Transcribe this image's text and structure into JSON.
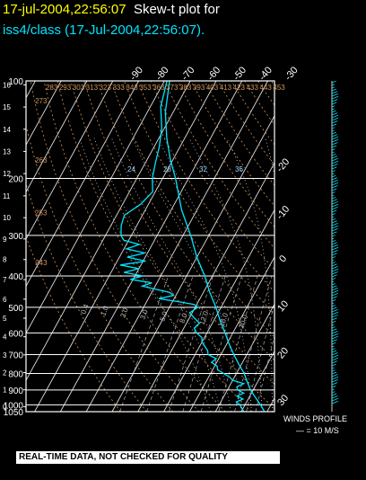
{
  "header": {
    "datetime": "17-jul-2004,22:56:07",
    "plot_label": "Skew-t plot for",
    "subtitle": "iss4/class (17-Jul-2004,22:56:07)."
  },
  "footer": {
    "qc_note": "REAL-TIME DATA, NOT CHECKED FOR QUALITY",
    "wind_title": "WINDS PROFILE",
    "wind_scale": "— = 10 M/S"
  },
  "colors": {
    "background": "#000000",
    "frame": "#ffffff",
    "isotherm": "#dddddd",
    "dry_adiabat": "#d2955a",
    "moist_adiabat": "#cccccc",
    "mixing_ratio": "#aaaaaa",
    "sounding": "#00e5ff",
    "datetime": "#ffff00"
  },
  "chart_data": {
    "type": "line",
    "diagram": "skew-t",
    "pressure_ticks_hpa": [
      100,
      200,
      300,
      400,
      500,
      600,
      700,
      800,
      900,
      1000,
      1050
    ],
    "height_ticks_km": [
      0,
      1,
      2,
      3,
      4,
      5,
      6,
      7,
      8,
      9,
      10,
      11,
      12,
      13,
      14,
      15,
      16
    ],
    "isotherm_labels_top": [
      "-90",
      "-80",
      "-70",
      "-60",
      "-50",
      "-40",
      "-30"
    ],
    "isotherm_labels_right": [
      "-20",
      "-10",
      "0",
      "10",
      "20",
      "30"
    ],
    "isotherm_values_c": [
      -90,
      -80,
      -70,
      -60,
      -50,
      -40,
      -30,
      -20,
      -10,
      0,
      10,
      20,
      30,
      40
    ],
    "dry_adiabat_labels": [
      "243",
      "253",
      "263",
      "273",
      "283",
      "293",
      "303",
      "313",
      "323",
      "333",
      "343",
      "353",
      "363",
      "373",
      "383",
      "393",
      "403",
      "413",
      "423",
      "433",
      "443",
      "453"
    ],
    "moist_adiabat_labels": [
      "24",
      "28",
      "32",
      "36"
    ],
    "mixing_ratio_labels": [
      "0.4",
      "1.0",
      "2.0",
      "3.0",
      "5.0",
      "8.0",
      "12.0",
      "16.0",
      "20.0"
    ],
    "series": [
      {
        "role": "temperature",
        "points": [
          [
            1050,
            29
          ],
          [
            1000,
            26
          ],
          [
            950,
            22.5
          ],
          [
            900,
            19
          ],
          [
            850,
            16
          ],
          [
            800,
            13
          ],
          [
            750,
            9
          ],
          [
            700,
            5
          ],
          [
            650,
            1
          ],
          [
            600,
            -3
          ],
          [
            550,
            -7.5
          ],
          [
            500,
            -12
          ],
          [
            450,
            -17.5
          ],
          [
            400,
            -23
          ],
          [
            350,
            -30
          ],
          [
            300,
            -37
          ],
          [
            250,
            -46
          ],
          [
            200,
            -55
          ],
          [
            175,
            -61
          ],
          [
            150,
            -67
          ],
          [
            125,
            -73
          ],
          [
            100,
            -78
          ]
        ]
      },
      {
        "role": "dewpoint",
        "points": [
          [
            1050,
            21
          ],
          [
            1000,
            18
          ],
          [
            980,
            16
          ],
          [
            960,
            18
          ],
          [
            940,
            15
          ],
          [
            920,
            17
          ],
          [
            900,
            14
          ],
          [
            880,
            13
          ],
          [
            860,
            15
          ],
          [
            840,
            10
          ],
          [
            820,
            8
          ],
          [
            800,
            5
          ],
          [
            780,
            2
          ],
          [
            760,
            1
          ],
          [
            740,
            -2
          ],
          [
            720,
            -1
          ],
          [
            700,
            -5
          ],
          [
            680,
            -6
          ],
          [
            660,
            -8
          ],
          [
            640,
            -10
          ],
          [
            620,
            -11
          ],
          [
            600,
            -14
          ],
          [
            580,
            -16
          ],
          [
            560,
            -15
          ],
          [
            540,
            -18
          ],
          [
            520,
            -21
          ],
          [
            500,
            -19
          ],
          [
            490,
            -21
          ],
          [
            480,
            -28
          ],
          [
            470,
            -36
          ],
          [
            460,
            -31
          ],
          [
            450,
            -33
          ],
          [
            440,
            -39
          ],
          [
            430,
            -45
          ],
          [
            420,
            -42
          ],
          [
            410,
            -51
          ],
          [
            400,
            -47
          ],
          [
            390,
            -55
          ],
          [
            380,
            -50
          ],
          [
            370,
            -58
          ],
          [
            360,
            -49
          ],
          [
            350,
            -57
          ],
          [
            340,
            -51
          ],
          [
            330,
            -59
          ],
          [
            320,
            -55
          ],
          [
            310,
            -62
          ],
          [
            300,
            -64
          ],
          [
            280,
            -66
          ],
          [
            260,
            -67
          ],
          [
            240,
            -63
          ],
          [
            220,
            -61
          ],
          [
            200,
            -64
          ],
          [
            180,
            -66
          ],
          [
            160,
            -68
          ],
          [
            140,
            -71
          ],
          [
            120,
            -76
          ],
          [
            100,
            -79
          ]
        ]
      }
    ]
  }
}
